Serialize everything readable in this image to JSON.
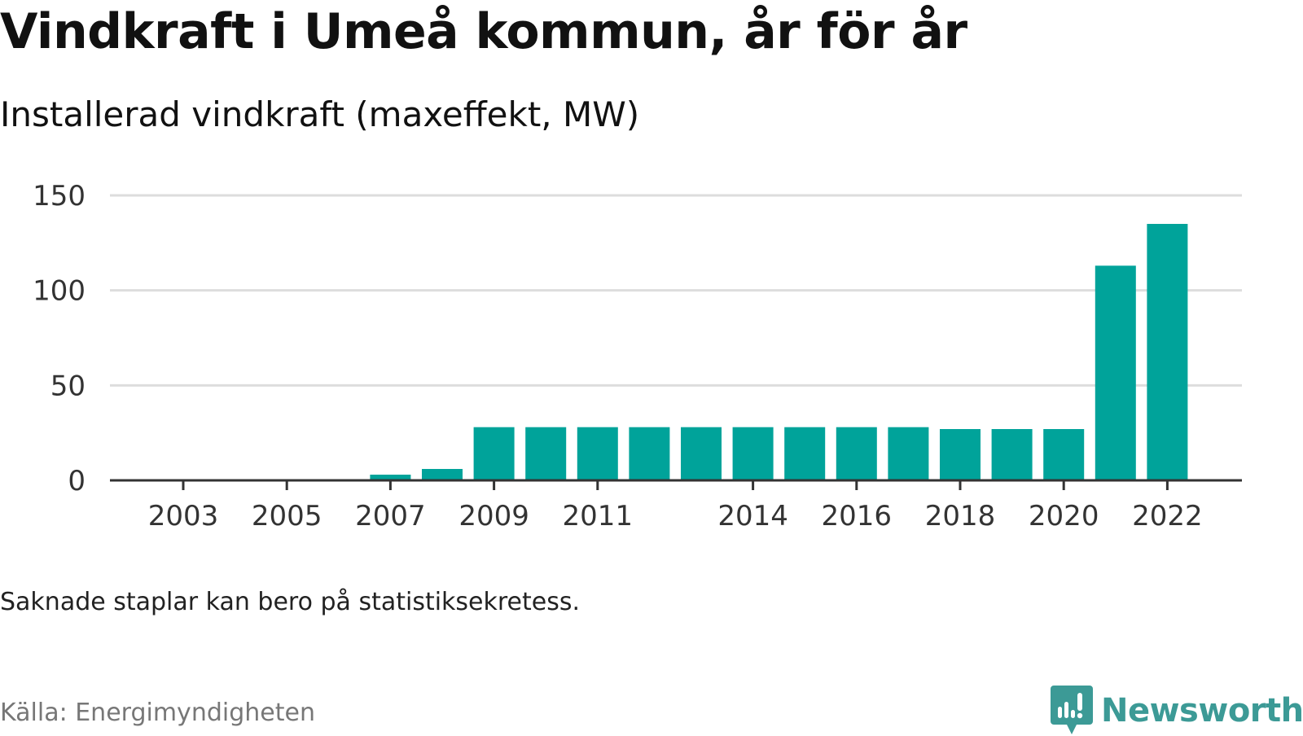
{
  "header": {
    "title": "Vindkraft i Umeå kommun, år för år",
    "subtitle": "Installerad vindkraft (maxeffekt, MW)"
  },
  "footer": {
    "note": "Saknade staplar kan bero på statistiksekretess.",
    "source": "Källa: Energimyndigheten",
    "brand": "Newsworthy",
    "brand_icon": "bar-chart-speech-bubble-icon"
  },
  "colors": {
    "bar": "#00a39a",
    "grid": "#dddddd",
    "axis": "#333333",
    "brand": "#3c9a96"
  },
  "chart_data": {
    "type": "bar",
    "title": "Vindkraft i Umeå kommun, år för år",
    "subtitle": "Installerad vindkraft (maxeffekt, MW)",
    "categories": [
      "2003",
      "2004",
      "2005",
      "2006",
      "2007",
      "2008",
      "2009",
      "2010",
      "2011",
      "2012",
      "2013",
      "2014",
      "2015",
      "2016",
      "2017",
      "2018",
      "2019",
      "2020",
      "2021",
      "2022"
    ],
    "values": [
      null,
      null,
      null,
      null,
      3,
      6,
      28,
      28,
      28,
      28,
      28,
      28,
      28,
      28,
      28,
      27,
      27,
      27,
      113,
      135
    ],
    "x_tick_labels": [
      "2003",
      "2005",
      "2007",
      "2009",
      "2011",
      "2014",
      "2016",
      "2018",
      "2020",
      "2022"
    ],
    "y_ticks": [
      0,
      50,
      100,
      150
    ],
    "ylim": [
      0,
      150
    ],
    "xlabel": "",
    "ylabel": "",
    "grid": true,
    "legend": "none"
  }
}
